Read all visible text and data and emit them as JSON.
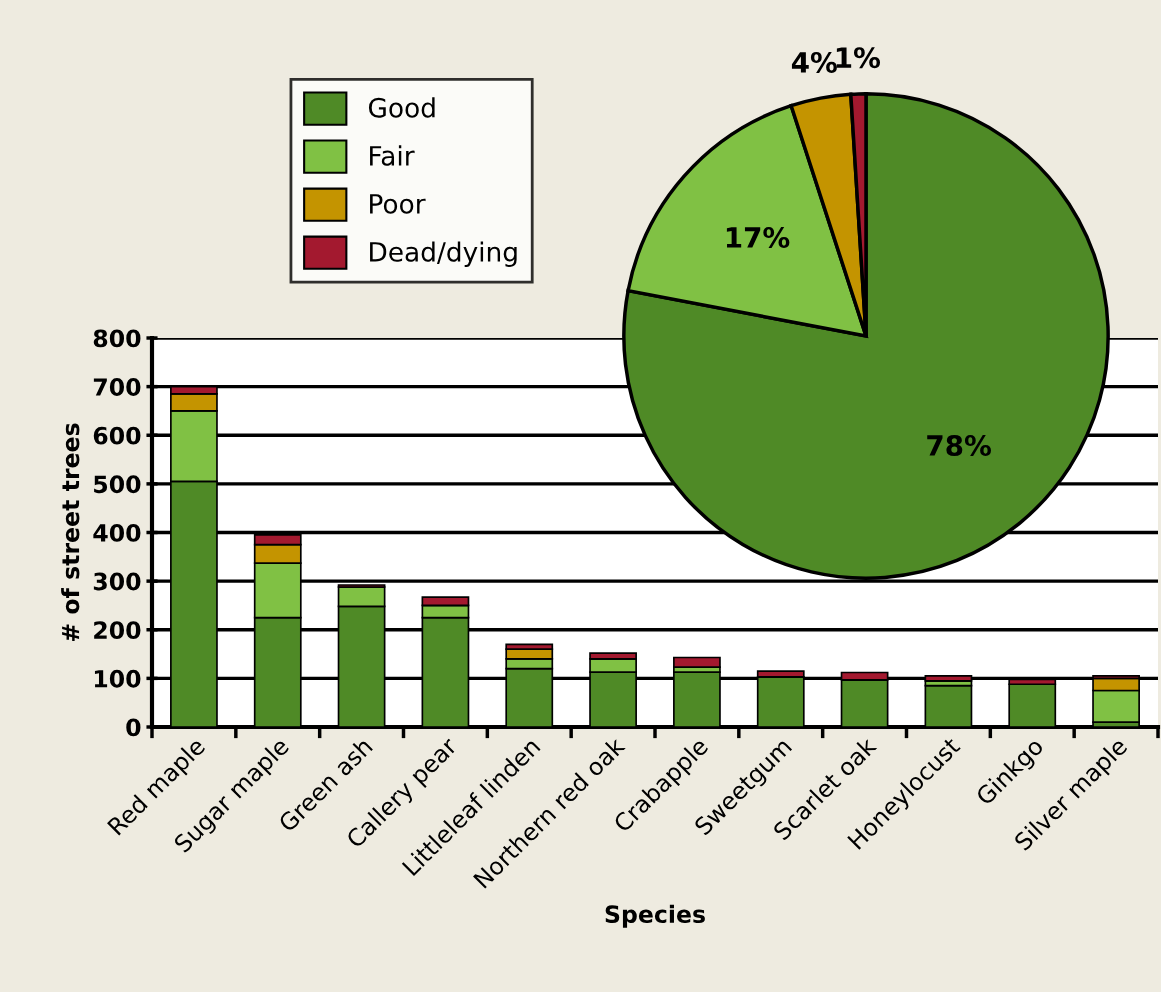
{
  "chart_data": [
    {
      "type": "bar",
      "stacked": true,
      "xlabel": "Species",
      "ylabel": "# of street trees",
      "categories": [
        "Red maple",
        "Sugar maple",
        "Green ash",
        "Callery pear",
        "Littleleaf linden",
        "Northern red oak",
        "Crabapple",
        "Sweetgum",
        "Scarlet oak",
        "Honeylocust",
        "Ginkgo",
        "Silver maple"
      ],
      "series": [
        {
          "name": "Good",
          "color": "#4f8a26",
          "values": [
            505,
            225,
            248,
            225,
            120,
            113,
            113,
            103,
            97,
            85,
            88,
            10
          ]
        },
        {
          "name": "Fair",
          "color": "#80c144",
          "values": [
            145,
            112,
            40,
            25,
            20,
            27,
            10,
            0,
            0,
            10,
            0,
            65
          ]
        },
        {
          "name": "Poor",
          "color": "#c49400",
          "values": [
            35,
            38,
            0,
            0,
            20,
            0,
            0,
            0,
            0,
            0,
            0,
            25
          ]
        },
        {
          "name": "Dead/dying",
          "color": "#a3192f",
          "values": [
            15,
            20,
            4,
            17,
            10,
            12,
            20,
            12,
            15,
            10,
            10,
            5
          ]
        }
      ],
      "ylim": [
        0,
        800
      ],
      "yticks": [
        0,
        100,
        200,
        300,
        400,
        500,
        600,
        700,
        800
      ],
      "grid": "y",
      "legend": "top left"
    },
    {
      "type": "pie",
      "categories": [
        null,
        null,
        null,
        null
      ],
      "values": [
        78,
        17,
        4,
        1
      ],
      "value_labels": [
        "78%",
        "17%",
        "4%",
        "1%"
      ],
      "colors": [
        "#4f8a26",
        "#80c144",
        "#c49400",
        "#a3192f"
      ]
    }
  ]
}
